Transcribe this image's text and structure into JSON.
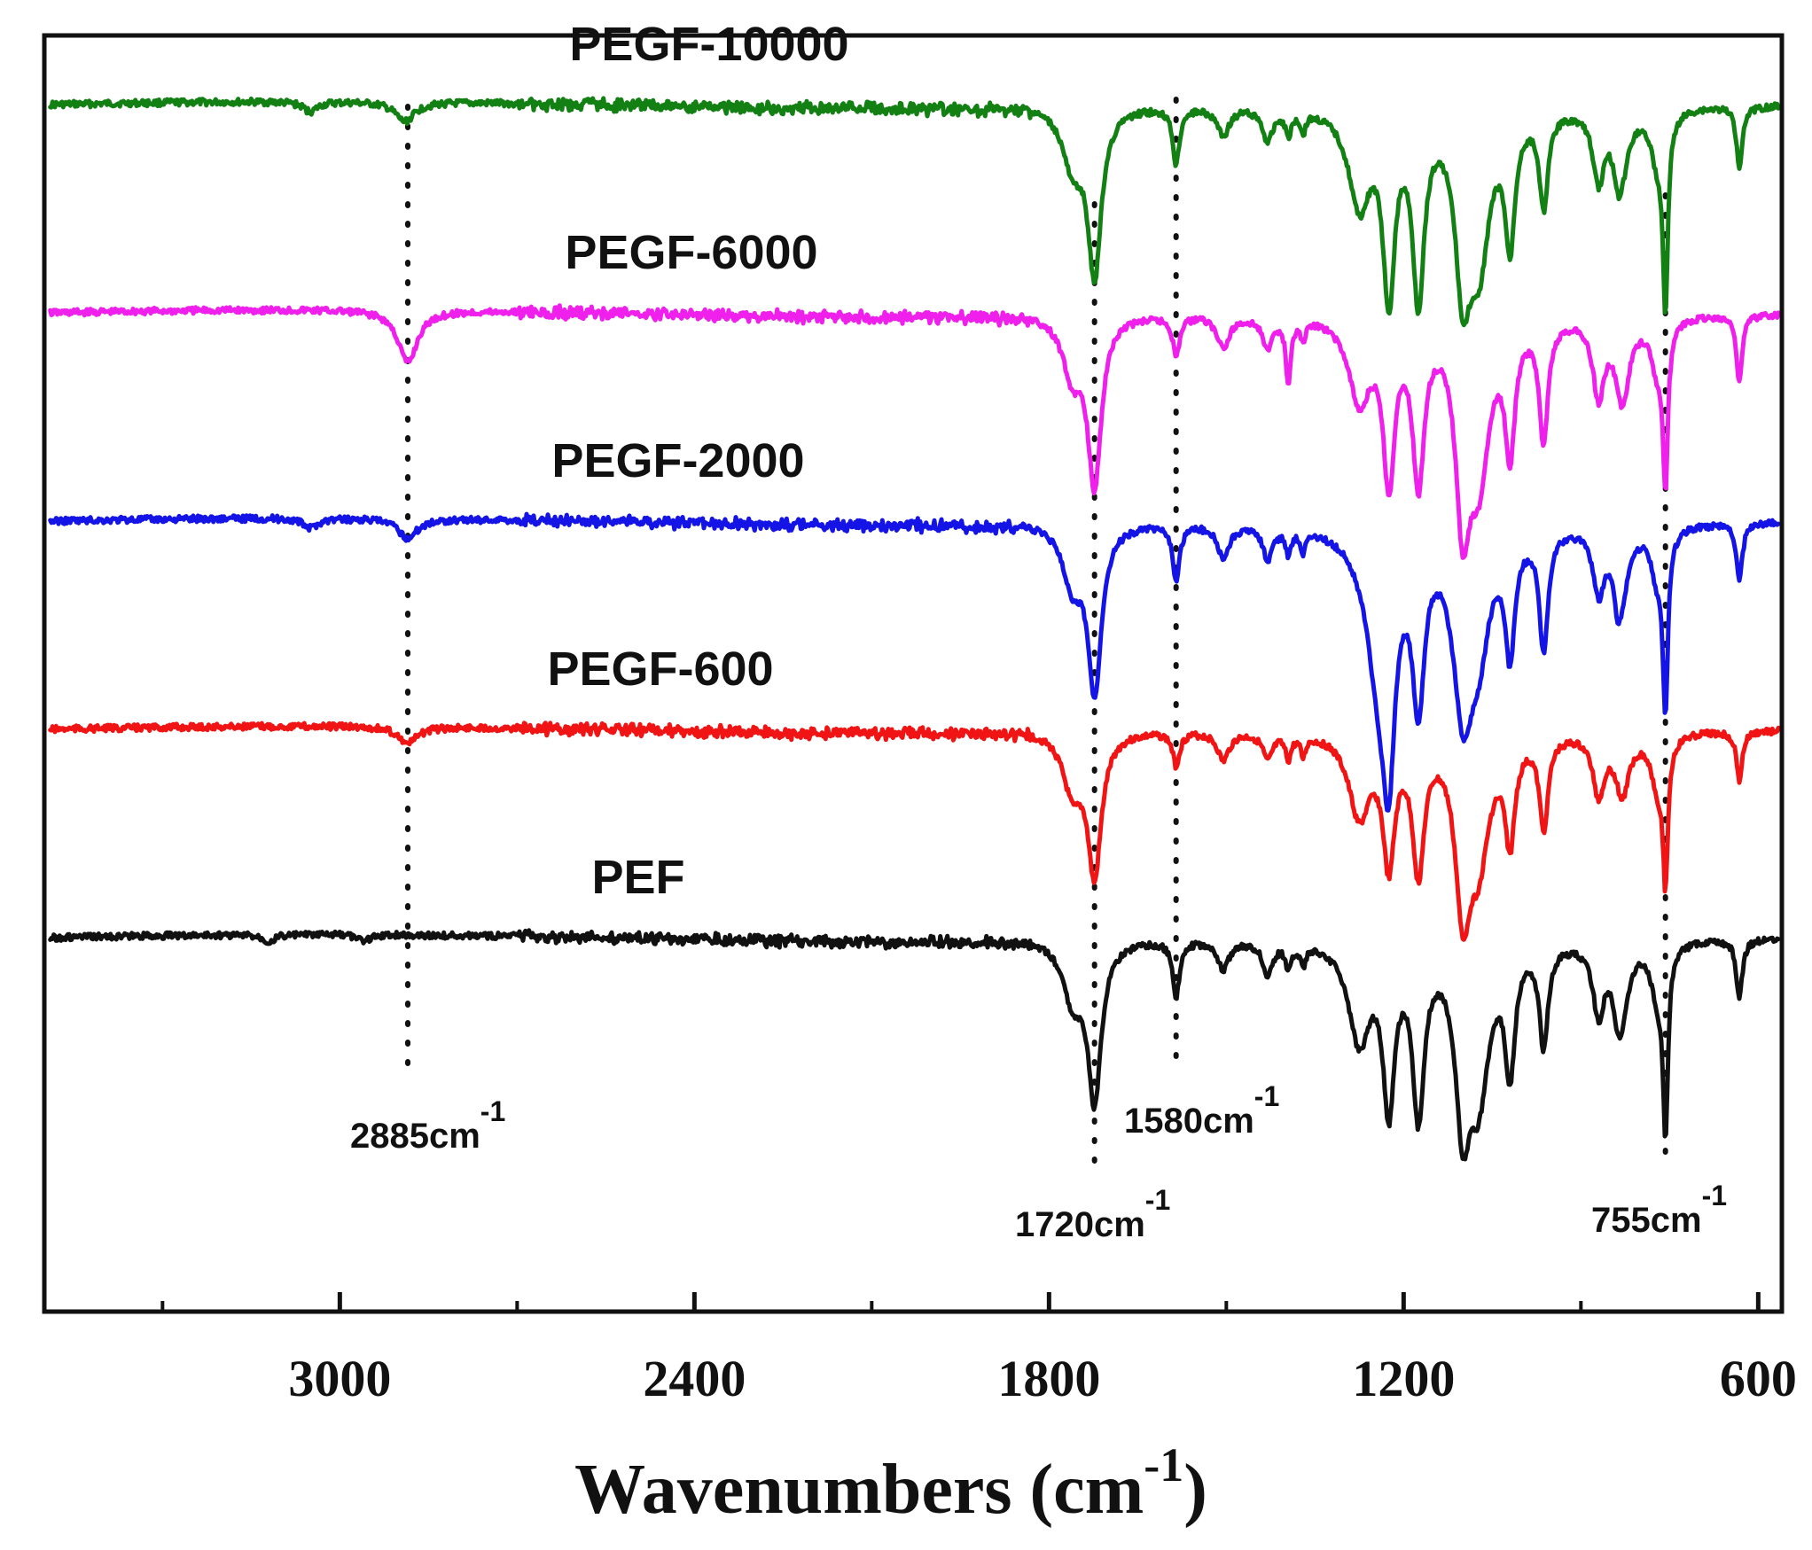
{
  "chart_data": {
    "type": "line",
    "title": "",
    "xlabel": "Wavenumbers (cm",
    "xlabel_sup": "-1",
    "xlabel_close": ")",
    "ylabel": "",
    "x_reversed": true,
    "xlim": [
      3500,
      560
    ],
    "x_ticks": [
      3000,
      2400,
      1800,
      1200,
      600
    ],
    "x_tick_labels": [
      "3000",
      "2400",
      "1800",
      "1200",
      "600"
    ],
    "x_minor_ticks": [
      3300,
      2700,
      2100,
      1500,
      900
    ],
    "series": [
      {
        "name": "PEGF-10000",
        "color": "#138013",
        "offset": 4,
        "peaks": [
          {
            "x": 3050,
            "d": 0.06,
            "w": 15
          },
          {
            "x": 2890,
            "d": 0.12,
            "w": 20
          },
          {
            "x": 1723,
            "d": 1.0,
            "w": 14
          },
          {
            "x": 1760,
            "d": 0.35,
            "w": 20
          },
          {
            "x": 1585,
            "d": 0.34,
            "w": 7
          },
          {
            "x": 1505,
            "d": 0.17,
            "w": 12
          },
          {
            "x": 1430,
            "d": 0.2,
            "w": 10
          },
          {
            "x": 1395,
            "d": 0.14,
            "w": 6
          },
          {
            "x": 1370,
            "d": 0.12,
            "w": 5
          },
          {
            "x": 1275,
            "d": 0.58,
            "w": 22
          },
          {
            "x": 1225,
            "d": 1.1,
            "w": 12
          },
          {
            "x": 1175,
            "d": 1.1,
            "w": 12
          },
          {
            "x": 1100,
            "d": 0.92,
            "w": 15
          },
          {
            "x": 1073,
            "d": 0.88,
            "w": 22
          },
          {
            "x": 1020,
            "d": 0.75,
            "w": 10
          },
          {
            "x": 963,
            "d": 0.56,
            "w": 9
          },
          {
            "x": 870,
            "d": 0.42,
            "w": 12
          },
          {
            "x": 838,
            "d": 0.23,
            "w": 9
          },
          {
            "x": 830,
            "d": 0.3,
            "w": 14
          },
          {
            "x": 770,
            "d": 0.3,
            "w": 14
          },
          {
            "x": 757,
            "d": 1.1,
            "w": 5
          },
          {
            "x": 632,
            "d": 0.36,
            "w": 6
          }
        ]
      },
      {
        "name": "PEGF-6000",
        "color": "#f020ec",
        "offset": 3,
        "peaks": [
          {
            "x": 2885,
            "d": 0.32,
            "w": 20
          },
          {
            "x": 1723,
            "d": 1.0,
            "w": 14
          },
          {
            "x": 1760,
            "d": 0.35,
            "w": 20
          },
          {
            "x": 1585,
            "d": 0.24,
            "w": 7
          },
          {
            "x": 1505,
            "d": 0.2,
            "w": 12
          },
          {
            "x": 1430,
            "d": 0.2,
            "w": 10
          },
          {
            "x": 1395,
            "d": 0.4,
            "w": 5
          },
          {
            "x": 1370,
            "d": 0.12,
            "w": 5
          },
          {
            "x": 1275,
            "d": 0.5,
            "w": 22
          },
          {
            "x": 1225,
            "d": 0.95,
            "w": 12
          },
          {
            "x": 1175,
            "d": 0.95,
            "w": 12
          },
          {
            "x": 1100,
            "d": 1.08,
            "w": 14
          },
          {
            "x": 1073,
            "d": 0.9,
            "w": 22
          },
          {
            "x": 1020,
            "d": 0.75,
            "w": 10
          },
          {
            "x": 963,
            "d": 0.72,
            "w": 9
          },
          {
            "x": 870,
            "d": 0.46,
            "w": 12
          },
          {
            "x": 830,
            "d": 0.5,
            "w": 14
          },
          {
            "x": 770,
            "d": 0.3,
            "w": 14
          },
          {
            "x": 757,
            "d": 0.9,
            "w": 5
          },
          {
            "x": 632,
            "d": 0.4,
            "w": 6
          }
        ]
      },
      {
        "name": "PEGF-2000",
        "color": "#1414e6",
        "offset": 2,
        "peaks": [
          {
            "x": 3050,
            "d": 0.06,
            "w": 15
          },
          {
            "x": 2885,
            "d": 0.12,
            "w": 20
          },
          {
            "x": 1723,
            "d": 1.0,
            "w": 14
          },
          {
            "x": 1760,
            "d": 0.35,
            "w": 20
          },
          {
            "x": 1585,
            "d": 0.34,
            "w": 7
          },
          {
            "x": 1505,
            "d": 0.2,
            "w": 12
          },
          {
            "x": 1430,
            "d": 0.2,
            "w": 10
          },
          {
            "x": 1395,
            "d": 0.14,
            "w": 6
          },
          {
            "x": 1370,
            "d": 0.12,
            "w": 5
          },
          {
            "x": 1240,
            "d": 0.9,
            "w": 28
          },
          {
            "x": 1225,
            "d": 0.95,
            "w": 12
          },
          {
            "x": 1175,
            "d": 0.95,
            "w": 12
          },
          {
            "x": 1100,
            "d": 1.0,
            "w": 20
          },
          {
            "x": 1073,
            "d": 0.6,
            "w": 22
          },
          {
            "x": 1020,
            "d": 0.7,
            "w": 10
          },
          {
            "x": 963,
            "d": 0.72,
            "w": 9
          },
          {
            "x": 870,
            "d": 0.38,
            "w": 12
          },
          {
            "x": 838,
            "d": 0.3,
            "w": 9
          },
          {
            "x": 830,
            "d": 0.3,
            "w": 14
          },
          {
            "x": 770,
            "d": 0.3,
            "w": 14
          },
          {
            "x": 757,
            "d": 1.0,
            "w": 5
          },
          {
            "x": 632,
            "d": 0.36,
            "w": 6
          }
        ]
      },
      {
        "name": "PEGF-600",
        "color": "#f01414",
        "offset": 1,
        "peaks": [
          {
            "x": 2885,
            "d": 0.1,
            "w": 20
          },
          {
            "x": 1723,
            "d": 0.85,
            "w": 14
          },
          {
            "x": 1760,
            "d": 0.35,
            "w": 20
          },
          {
            "x": 1585,
            "d": 0.2,
            "w": 7
          },
          {
            "x": 1505,
            "d": 0.17,
            "w": 12
          },
          {
            "x": 1430,
            "d": 0.16,
            "w": 10
          },
          {
            "x": 1395,
            "d": 0.14,
            "w": 6
          },
          {
            "x": 1370,
            "d": 0.12,
            "w": 5
          },
          {
            "x": 1275,
            "d": 0.5,
            "w": 22
          },
          {
            "x": 1225,
            "d": 0.75,
            "w": 12
          },
          {
            "x": 1175,
            "d": 0.8,
            "w": 12
          },
          {
            "x": 1100,
            "d": 0.95,
            "w": 15
          },
          {
            "x": 1073,
            "d": 0.7,
            "w": 22
          },
          {
            "x": 1020,
            "d": 0.6,
            "w": 10
          },
          {
            "x": 963,
            "d": 0.55,
            "w": 9
          },
          {
            "x": 870,
            "d": 0.36,
            "w": 12
          },
          {
            "x": 830,
            "d": 0.36,
            "w": 14
          },
          {
            "x": 770,
            "d": 0.3,
            "w": 14
          },
          {
            "x": 757,
            "d": 0.8,
            "w": 5
          },
          {
            "x": 632,
            "d": 0.3,
            "w": 6
          }
        ]
      },
      {
        "name": "PEF",
        "color": "#111111",
        "offset": 0,
        "peaks": [
          {
            "x": 3120,
            "d": 0.04,
            "w": 12
          },
          {
            "x": 2960,
            "d": 0.04,
            "w": 12
          },
          {
            "x": 1723,
            "d": 0.95,
            "w": 14
          },
          {
            "x": 1760,
            "d": 0.35,
            "w": 20
          },
          {
            "x": 1585,
            "d": 0.34,
            "w": 7
          },
          {
            "x": 1505,
            "d": 0.17,
            "w": 12
          },
          {
            "x": 1430,
            "d": 0.2,
            "w": 10
          },
          {
            "x": 1395,
            "d": 0.14,
            "w": 6
          },
          {
            "x": 1370,
            "d": 0.12,
            "w": 5
          },
          {
            "x": 1275,
            "d": 0.6,
            "w": 22
          },
          {
            "x": 1225,
            "d": 0.95,
            "w": 12
          },
          {
            "x": 1175,
            "d": 1.0,
            "w": 12
          },
          {
            "x": 1100,
            "d": 0.95,
            "w": 15
          },
          {
            "x": 1073,
            "d": 0.85,
            "w": 22
          },
          {
            "x": 1020,
            "d": 0.72,
            "w": 10
          },
          {
            "x": 963,
            "d": 0.6,
            "w": 9
          },
          {
            "x": 870,
            "d": 0.42,
            "w": 12
          },
          {
            "x": 838,
            "d": 0.23,
            "w": 9
          },
          {
            "x": 830,
            "d": 0.36,
            "w": 14
          },
          {
            "x": 770,
            "d": 0.3,
            "w": 14
          },
          {
            "x": 757,
            "d": 1.05,
            "w": 5
          },
          {
            "x": 632,
            "d": 0.36,
            "w": 6
          }
        ]
      }
    ],
    "reference_lines": [
      {
        "x": 2885,
        "label": "2885cm",
        "sup": "-1"
      },
      {
        "x": 1723,
        "label": "1720cm",
        "sup": "-1"
      },
      {
        "x": 1585,
        "label": "1580cm",
        "sup": "-1"
      },
      {
        "x": 757,
        "label": "755cm",
        "sup": "-1"
      }
    ],
    "grid": false
  }
}
